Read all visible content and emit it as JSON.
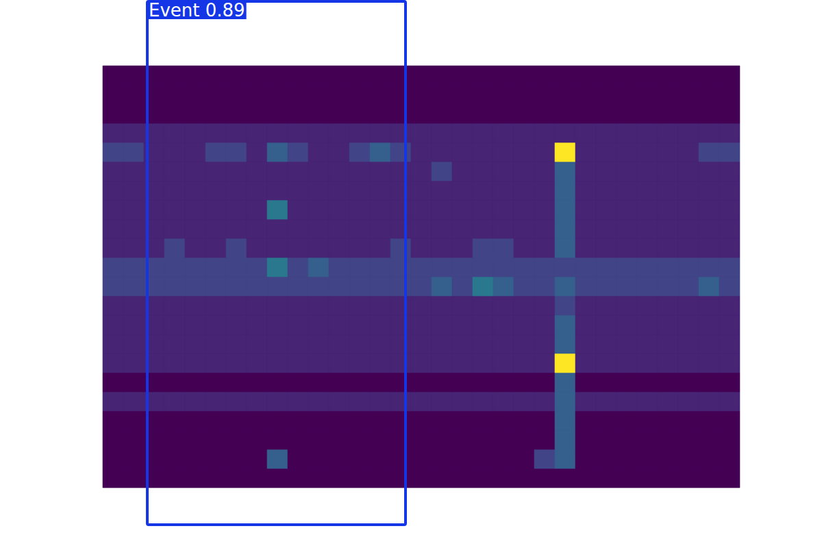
{
  "chart_data": {
    "type": "heatmap",
    "xlim": [
      0,
      120
    ],
    "ylim": [
      0,
      80
    ],
    "tick_labels": false,
    "x_edges": [
      15,
      18,
      21,
      24,
      27,
      30,
      33,
      36,
      39,
      42,
      45,
      48,
      51,
      54,
      57,
      60,
      63,
      66,
      69,
      72,
      75,
      78,
      81,
      84,
      87,
      90,
      93,
      96,
      99,
      102,
      105,
      108
    ],
    "y_edges": [
      8.8,
      11.6,
      14.4,
      17.2,
      20,
      22.8,
      25.6,
      28.4,
      31.2,
      34,
      36.8,
      39.6,
      42.4,
      45.2,
      48,
      50.8,
      53.6,
      56.4,
      59.2,
      62,
      64.8,
      67.6,
      70.4
    ],
    "crange": [
      0,
      10
    ],
    "cells": [
      [
        0,
        0,
        0,
        0,
        0,
        0,
        0,
        0,
        0,
        0,
        0,
        0,
        0,
        0,
        0,
        0,
        0,
        0,
        0,
        0,
        0,
        0,
        0,
        0,
        0,
        0,
        0,
        0,
        0,
        0,
        0
      ],
      [
        0,
        0,
        0,
        0,
        0,
        0,
        0,
        0,
        3,
        0,
        0,
        0,
        0,
        0,
        0,
        0,
        0,
        0,
        0,
        0,
        0,
        2,
        3,
        0,
        0,
        0,
        0,
        0,
        0,
        0,
        0
      ],
      [
        0,
        0,
        0,
        0,
        0,
        0,
        0,
        0,
        0,
        0,
        0,
        0,
        0,
        0,
        0,
        0,
        0,
        0,
        0,
        0,
        0,
        0,
        3,
        0,
        0,
        0,
        0,
        0,
        0,
        0,
        0
      ],
      [
        0,
        0,
        0,
        0,
        0,
        0,
        0,
        0,
        0,
        0,
        0,
        0,
        0,
        0,
        0,
        0,
        0,
        0,
        0,
        0,
        0,
        0,
        3,
        0,
        0,
        0,
        0,
        0,
        0,
        0,
        0
      ],
      [
        1,
        1,
        1,
        1,
        1,
        1,
        1,
        1,
        1,
        1,
        1,
        1,
        1,
        1,
        1,
        1,
        1,
        1,
        1,
        1,
        1,
        1,
        3,
        1,
        1,
        1,
        1,
        1,
        1,
        1,
        1
      ],
      [
        0,
        0,
        0,
        0,
        0,
        0,
        0,
        0,
        0,
        0,
        0,
        0,
        0,
        0,
        0,
        0,
        0,
        0,
        0,
        0,
        0,
        0,
        3,
        0,
        0,
        0,
        0,
        0,
        0,
        0,
        0
      ],
      [
        1,
        1,
        1,
        1,
        1,
        1,
        1,
        1,
        1,
        1,
        1,
        1,
        1,
        1,
        1,
        1,
        1,
        1,
        1,
        1,
        1,
        1,
        10,
        1,
        1,
        1,
        1,
        1,
        1,
        1,
        1
      ],
      [
        1,
        1,
        1,
        1,
        1,
        1,
        1,
        1,
        1,
        1,
        1,
        1,
        1,
        1,
        1,
        1,
        1,
        1,
        1,
        1,
        1,
        1,
        3,
        1,
        1,
        1,
        1,
        1,
        1,
        1,
        1
      ],
      [
        1,
        1,
        1,
        1,
        1,
        1,
        1,
        1,
        1,
        1,
        1,
        1,
        1,
        1,
        1,
        1,
        1,
        1,
        1,
        1,
        1,
        1,
        3,
        1,
        1,
        1,
        1,
        1,
        1,
        1,
        1
      ],
      [
        1,
        1,
        1,
        1,
        1,
        1,
        1,
        1,
        1,
        1,
        1,
        1,
        1,
        1,
        1,
        1,
        1,
        1,
        1,
        1,
        1,
        1,
        2,
        1,
        1,
        1,
        1,
        1,
        1,
        1,
        1
      ],
      [
        2,
        2,
        2,
        2,
        2,
        2,
        2,
        2,
        2,
        2,
        2,
        2,
        2,
        2,
        2,
        2,
        3,
        2,
        4,
        3,
        2,
        2,
        3,
        2,
        2,
        2,
        2,
        2,
        2,
        3,
        2
      ],
      [
        2,
        2,
        2,
        2,
        2,
        2,
        2,
        2,
        4,
        2,
        3,
        2,
        2,
        2,
        2,
        2,
        2,
        2,
        2,
        2,
        2,
        2,
        2,
        2,
        2,
        2,
        2,
        2,
        2,
        2,
        2
      ],
      [
        1,
        1,
        1,
        2,
        1,
        1,
        2,
        1,
        1,
        1,
        1,
        1,
        1,
        1,
        2,
        1,
        1,
        1,
        2,
        2,
        1,
        1,
        3,
        1,
        1,
        1,
        1,
        1,
        1,
        1,
        1
      ],
      [
        1,
        1,
        1,
        1,
        1,
        1,
        1,
        1,
        1,
        1,
        1,
        1,
        1,
        1,
        1,
        1,
        1,
        1,
        1,
        1,
        1,
        1,
        3,
        1,
        1,
        1,
        1,
        1,
        1,
        1,
        1
      ],
      [
        1,
        1,
        1,
        1,
        1,
        1,
        1,
        1,
        4,
        1,
        1,
        1,
        1,
        1,
        1,
        1,
        1,
        1,
        1,
        1,
        1,
        1,
        3,
        1,
        1,
        1,
        1,
        1,
        1,
        1,
        1
      ],
      [
        1,
        1,
        1,
        1,
        1,
        1,
        1,
        1,
        1,
        1,
        1,
        1,
        1,
        1,
        1,
        1,
        1,
        1,
        1,
        1,
        1,
        1,
        3,
        1,
        1,
        1,
        1,
        1,
        1,
        1,
        1
      ],
      [
        1,
        1,
        1,
        1,
        1,
        1,
        1,
        1,
        1,
        1,
        1,
        1,
        1,
        1,
        1,
        1,
        2,
        1,
        1,
        1,
        1,
        1,
        3,
        1,
        1,
        1,
        1,
        1,
        1,
        1,
        1
      ],
      [
        2,
        2,
        1,
        1,
        1,
        2,
        2,
        1,
        3,
        2,
        1,
        1,
        2,
        3,
        2,
        1,
        1,
        1,
        1,
        1,
        1,
        1,
        10,
        1,
        1,
        1,
        1,
        1,
        1,
        2,
        2
      ],
      [
        1,
        1,
        1,
        1,
        1,
        1,
        1,
        1,
        1,
        1,
        1,
        1,
        1,
        1,
        1,
        1,
        1,
        1,
        1,
        1,
        1,
        1,
        1,
        1,
        1,
        1,
        1,
        1,
        1,
        1,
        1
      ],
      [
        0,
        0,
        0,
        0,
        0,
        0,
        0,
        0,
        0,
        0,
        0,
        0,
        0,
        0,
        0,
        0,
        0,
        0,
        0,
        0,
        0,
        0,
        0,
        0,
        0,
        0,
        0,
        0,
        0,
        0,
        0
      ],
      [
        0,
        0,
        0,
        0,
        0,
        0,
        0,
        0,
        0,
        0,
        0,
        0,
        0,
        0,
        0,
        0,
        0,
        0,
        0,
        0,
        0,
        0,
        0,
        0,
        0,
        0,
        0,
        0,
        0,
        0,
        0
      ],
      [
        0,
        0,
        0,
        0,
        0,
        0,
        0,
        0,
        0,
        0,
        0,
        0,
        0,
        0,
        0,
        0,
        0,
        0,
        0,
        0,
        0,
        0,
        0,
        0,
        0,
        0,
        0,
        0,
        0,
        0,
        0
      ]
    ],
    "annotations": [
      {
        "text": "Event 0.89",
        "x0": 21.5,
        "x1": 59.2,
        "y0": 3.4,
        "y1": 79.8,
        "color": "#1436e6"
      }
    ]
  }
}
